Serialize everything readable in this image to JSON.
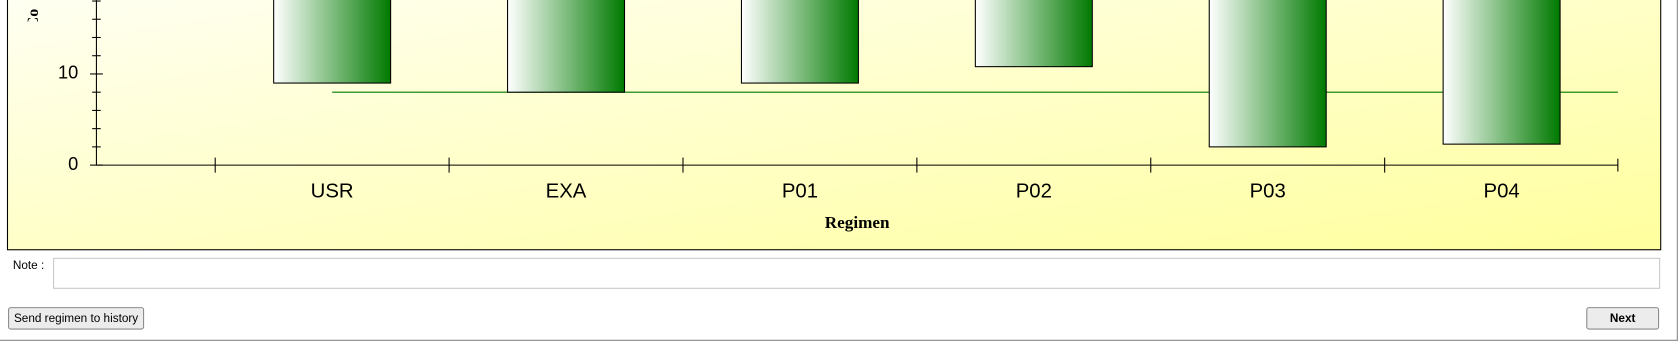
{
  "chart_data": {
    "type": "range-bar",
    "categories": [
      "USR",
      "EXA",
      "P01",
      "P02",
      "P03",
      "P04"
    ],
    "lows": [
      9,
      8,
      9,
      10.8,
      2,
      2.3
    ],
    "color": "#007a00",
    "reference_line": 8,
    "ylim": [
      0,
      18.1
    ],
    "yticks": [
      0,
      10
    ],
    "yminorticks": [
      2,
      4,
      6,
      8,
      12,
      14,
      16,
      18
    ],
    "xlabel": "Regimen",
    "ylabel": "Co"
  },
  "form": {
    "note_label": "Note :",
    "send_button": "Send regimen to history",
    "next_button": "Next"
  }
}
